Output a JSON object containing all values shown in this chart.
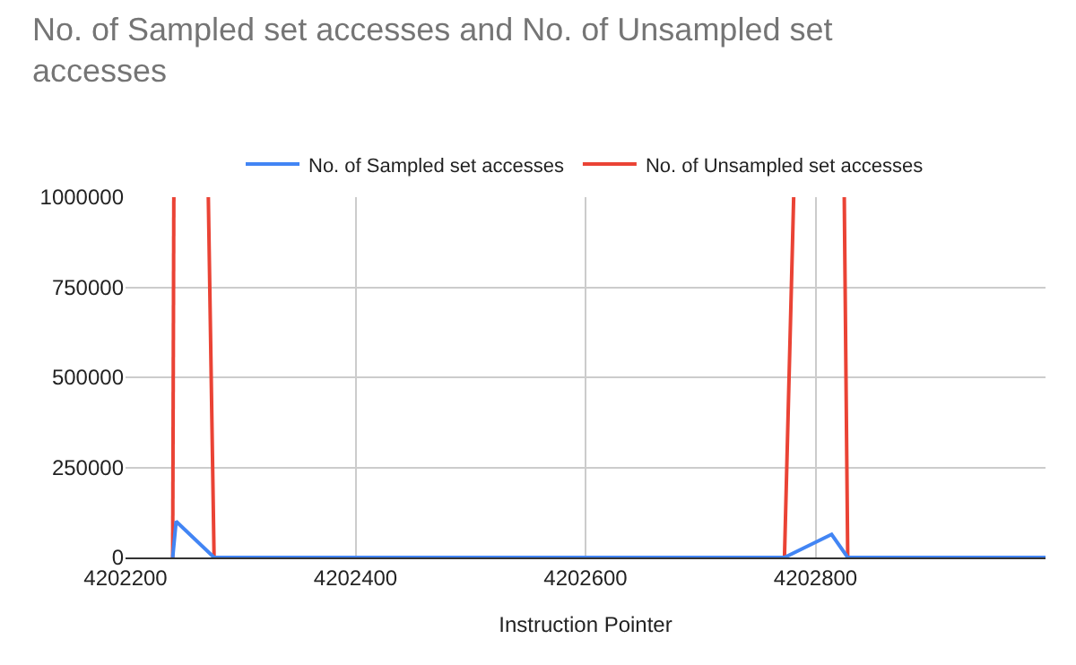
{
  "chart_data": {
    "type": "line",
    "title": "No. of Sampled set accesses and No. of Unsampled set accesses",
    "xlabel": "Instruction Pointer",
    "series": [
      {
        "name": "No. of Sampled set accesses",
        "color": "#4285f4",
        "x": [
          4202241,
          4202244,
          4202277,
          4202773,
          4202814,
          4202828,
          4203000
        ],
        "values": [
          0,
          100000,
          0,
          0,
          64000,
          0,
          0
        ]
      },
      {
        "name": "No. of Unsampled set accesses",
        "color": "#ea4335",
        "x": [
          4202241,
          4202242,
          4202257,
          4202272,
          4202277,
          4202773,
          4202781,
          4202803,
          4202825,
          4202828,
          4203000
        ],
        "values": [
          0,
          1000000,
          null,
          1000000,
          0,
          0,
          1000000,
          null,
          1000000,
          0,
          0
        ]
      }
    ],
    "xlim": [
      4202200,
      4203000
    ],
    "xticks": [
      4202200,
      4202400,
      4202600,
      4202800
    ],
    "ylim": [
      0,
      1000000
    ],
    "yticks": [
      0,
      250000,
      500000,
      750000,
      1000000
    ],
    "grid": true,
    "legend": "top",
    "marker": "none",
    "line_style": "solid"
  }
}
